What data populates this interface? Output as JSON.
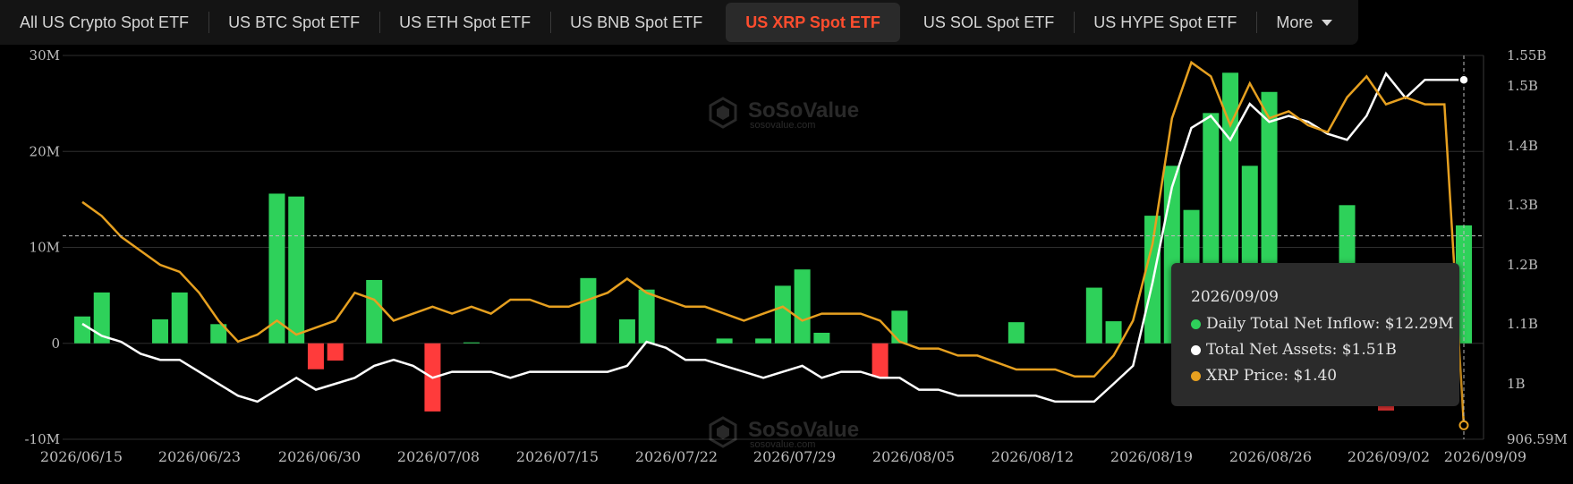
{
  "tabs": [
    {
      "label": "All US Crypto Spot ETF",
      "active": false
    },
    {
      "label": "US BTC Spot ETF",
      "active": false
    },
    {
      "label": "US ETH Spot ETF",
      "active": false
    },
    {
      "label": "US BNB Spot ETF",
      "active": false
    },
    {
      "label": "US XRP Spot ETF",
      "active": true
    },
    {
      "label": "US SOL Spot ETF",
      "active": false
    },
    {
      "label": "US HYPE Spot ETF",
      "active": false
    }
  ],
  "more_label": "More",
  "watermark": {
    "brand": "SoSoValue",
    "site": "sosovalue.com"
  },
  "tooltip": {
    "date": "2026/09/09",
    "rows": [
      {
        "label": "Daily Total Net Inflow: $12.29M",
        "color": "#2ed15a"
      },
      {
        "label": "Total Net Assets: $1.51B",
        "color": "#ffffff"
      },
      {
        "label": "XRP Price: $1.40",
        "color": "#e6a020"
      }
    ]
  },
  "colors": {
    "inflow": "#2ed15a",
    "outflow": "#ff3b3b",
    "assets": "#ffffff",
    "price": "#e6a020",
    "active_tab": "#ff4d2e"
  },
  "chart_data": {
    "type": "bar",
    "x_tick_labels": [
      "2026/06/15",
      "2026/06/23",
      "2026/06/30",
      "2026/07/08",
      "2026/07/15",
      "2026/07/22",
      "2026/07/29",
      "2026/08/05",
      "2026/08/12",
      "2026/08/19",
      "2026/08/26",
      "2026/09/02",
      "2026/09/09"
    ],
    "y_left_ticks": [
      "30M",
      "20M",
      "10M",
      "0",
      "-10M"
    ],
    "y_left_range": [
      -10,
      30
    ],
    "y_right_ticks": [
      "1.55B",
      "1.5B",
      "1.4B",
      "1.3B",
      "1.2B",
      "1.1B",
      "1B",
      "906.59M"
    ],
    "y_right_range": [
      906.59,
      1550
    ],
    "series": [
      {
        "name": "Daily Total Net Inflow",
        "unit": "M",
        "values": [
          2.8,
          5.3,
          0,
          0,
          2.5,
          5.3,
          0,
          2.0,
          0,
          0,
          15.6,
          15.3,
          -2.7,
          -1.8,
          0,
          6.6,
          0,
          0,
          -7.1,
          0,
          0.1,
          0,
          0,
          0,
          0,
          0,
          6.8,
          0,
          2.5,
          5.6,
          0,
          0,
          0,
          0.5,
          0,
          0.5,
          6.0,
          7.7,
          1.1,
          0,
          0,
          -3.5,
          3.4,
          0,
          0,
          0,
          0,
          0,
          2.2,
          0,
          0,
          0,
          5.8,
          2.3,
          0,
          13.3,
          18.5,
          13.9,
          24.0,
          28.2,
          18.5,
          26.2,
          0,
          0,
          0,
          14.4,
          0,
          -7.0,
          0,
          0,
          1.5,
          12.29
        ]
      },
      {
        "name": "Total Net Assets",
        "unit": "B",
        "values": [
          1.1,
          1.08,
          1.07,
          1.05,
          1.04,
          1.04,
          1.02,
          1.0,
          0.98,
          0.97,
          0.99,
          1.01,
          0.99,
          1.0,
          1.01,
          1.03,
          1.04,
          1.03,
          1.01,
          1.02,
          1.02,
          1.02,
          1.01,
          1.02,
          1.02,
          1.02,
          1.02,
          1.02,
          1.03,
          1.07,
          1.06,
          1.04,
          1.04,
          1.03,
          1.02,
          1.01,
          1.02,
          1.03,
          1.01,
          1.02,
          1.02,
          1.01,
          1.01,
          0.99,
          0.99,
          0.98,
          0.98,
          0.98,
          0.98,
          0.98,
          0.97,
          0.97,
          0.97,
          1.0,
          1.03,
          1.17,
          1.33,
          1.43,
          1.45,
          1.41,
          1.47,
          1.44,
          1.45,
          1.44,
          1.42,
          1.41,
          1.45,
          1.52,
          1.48,
          1.51,
          1.51,
          1.51
        ]
      },
      {
        "name": "XRP Price",
        "unit": "$",
        "values": [
          1.72,
          1.7,
          1.67,
          1.65,
          1.63,
          1.62,
          1.59,
          1.55,
          1.52,
          1.53,
          1.55,
          1.53,
          1.54,
          1.55,
          1.59,
          1.58,
          1.55,
          1.56,
          1.57,
          1.56,
          1.57,
          1.56,
          1.58,
          1.58,
          1.57,
          1.57,
          1.58,
          1.59,
          1.61,
          1.59,
          1.58,
          1.57,
          1.57,
          1.56,
          1.55,
          1.56,
          1.57,
          1.55,
          1.56,
          1.56,
          1.56,
          1.55,
          1.52,
          1.51,
          1.51,
          1.5,
          1.5,
          1.49,
          1.48,
          1.48,
          1.48,
          1.47,
          1.47,
          1.5,
          1.55,
          1.66,
          1.84,
          1.92,
          1.9,
          1.83,
          1.89,
          1.84,
          1.85,
          1.83,
          1.82,
          1.87,
          1.9,
          1.86,
          1.87,
          1.86,
          1.86,
          1.4
        ]
      }
    ],
    "grid": true,
    "legend": "tooltip"
  }
}
